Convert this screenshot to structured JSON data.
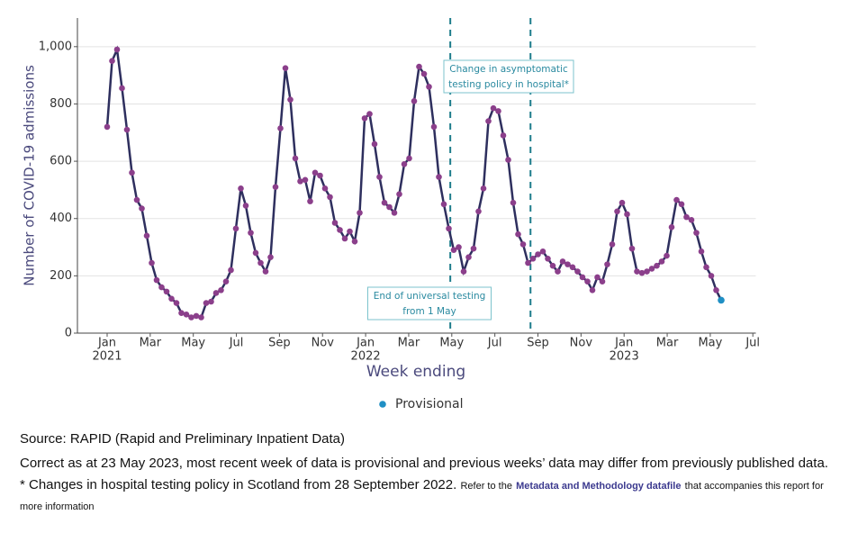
{
  "chart_data": {
    "type": "line",
    "ylabel": "Number of COVID-19 admissions",
    "xlabel": "Week ending",
    "ylim": [
      0,
      1100
    ],
    "yticks": [
      0,
      200,
      400,
      600,
      800,
      {
        "value": 1000,
        "label": "1,000"
      }
    ],
    "xlim": [
      -6,
      131
    ],
    "xticks": [
      {
        "value": 0,
        "label": "Jan",
        "sublabel": "2021"
      },
      {
        "value": 8.7,
        "label": "Mar"
      },
      {
        "value": 17.4,
        "label": "May"
      },
      {
        "value": 26.1,
        "label": "Jul"
      },
      {
        "value": 34.8,
        "label": "Sep"
      },
      {
        "value": 43.5,
        "label": "Nov"
      },
      {
        "value": 52.2,
        "label": "Jan",
        "sublabel": "2022"
      },
      {
        "value": 60.9,
        "label": "Mar"
      },
      {
        "value": 69.6,
        "label": "May"
      },
      {
        "value": 78.3,
        "label": "Jul"
      },
      {
        "value": 87.0,
        "label": "Sep"
      },
      {
        "value": 95.7,
        "label": "Nov"
      },
      {
        "value": 104.4,
        "label": "Jan",
        "sublabel": "2023"
      },
      {
        "value": 113.1,
        "label": "Mar"
      },
      {
        "value": 121.8,
        "label": "May"
      },
      {
        "value": 130.4,
        "label": "Jul"
      }
    ],
    "grid": true,
    "series": [
      {
        "color": "#2e2f5e",
        "marker_color": "#8b3f8b",
        "values": [
          720,
          950,
          990,
          855,
          710,
          560,
          465,
          435,
          340,
          245,
          185,
          160,
          145,
          120,
          105,
          70,
          65,
          55,
          60,
          55,
          105,
          110,
          140,
          150,
          180,
          220,
          365,
          505,
          445,
          350,
          280,
          245,
          215,
          265,
          510,
          715,
          925,
          815,
          610,
          530,
          535,
          460,
          560,
          550,
          505,
          475,
          385,
          360,
          330,
          355,
          320,
          420,
          750,
          765,
          660,
          545,
          455,
          440,
          420,
          485,
          590,
          610,
          810,
          930,
          905,
          860,
          720,
          545,
          450,
          365,
          290,
          300,
          215,
          265,
          295,
          425,
          505,
          740,
          785,
          775,
          690,
          605,
          455,
          345,
          310,
          245,
          260,
          275,
          285,
          260,
          235,
          215,
          250,
          240,
          230,
          215,
          195,
          180,
          150,
          195,
          180,
          240,
          310,
          425,
          455,
          415,
          295,
          215,
          210,
          215,
          225,
          235,
          250,
          270,
          370,
          465,
          450,
          405,
          395,
          350,
          285,
          230,
          200,
          150,
          null
        ]
      },
      {
        "name": "Provisional",
        "color": "#1f8fc4",
        "values": [
          null,
          null,
          null,
          null,
          null,
          null,
          null,
          null,
          null,
          null,
          null,
          null,
          null,
          null,
          null,
          null,
          null,
          null,
          null,
          null,
          null,
          null,
          null,
          null,
          null,
          null,
          null,
          null,
          null,
          null,
          null,
          null,
          null,
          null,
          null,
          null,
          null,
          null,
          null,
          null,
          null,
          null,
          null,
          null,
          null,
          null,
          null,
          null,
          null,
          null,
          null,
          null,
          null,
          null,
          null,
          null,
          null,
          null,
          null,
          null,
          null,
          null,
          null,
          null,
          null,
          null,
          null,
          null,
          null,
          null,
          null,
          null,
          null,
          null,
          null,
          null,
          null,
          null,
          null,
          null,
          null,
          null,
          null,
          null,
          null,
          null,
          null,
          null,
          null,
          null,
          null,
          null,
          null,
          null,
          null,
          null,
          null,
          null,
          null,
          null,
          null,
          null,
          null,
          null,
          null,
          null,
          null,
          null,
          null,
          null,
          null,
          null,
          null,
          null,
          null,
          null,
          null,
          null,
          null,
          null,
          null,
          null,
          null,
          null,
          115
        ]
      }
    ],
    "annotations": [
      {
        "x": 69.3,
        "lines": [
          "End of universal testing",
          "from 1 May"
        ]
      },
      {
        "x": 85.5,
        "lines": [
          "Change in asymptomatic",
          "testing policy in hospital*"
        ]
      }
    ]
  },
  "notes": {
    "source": "Source: RAPID (Rapid and Preliminary Inpatient Data)",
    "correct_as": "Correct as at 23 May 2023, most recent week of data is provisional and previous weeks’ data may differ from previously published data.",
    "footnote": "* Changes in hospital testing policy in Scotland from 28 September 2022.",
    "refer_before": "Refer to the",
    "link": "Metadata and Methodology datafile",
    "refer_after": "that accompanies this report for more information"
  }
}
